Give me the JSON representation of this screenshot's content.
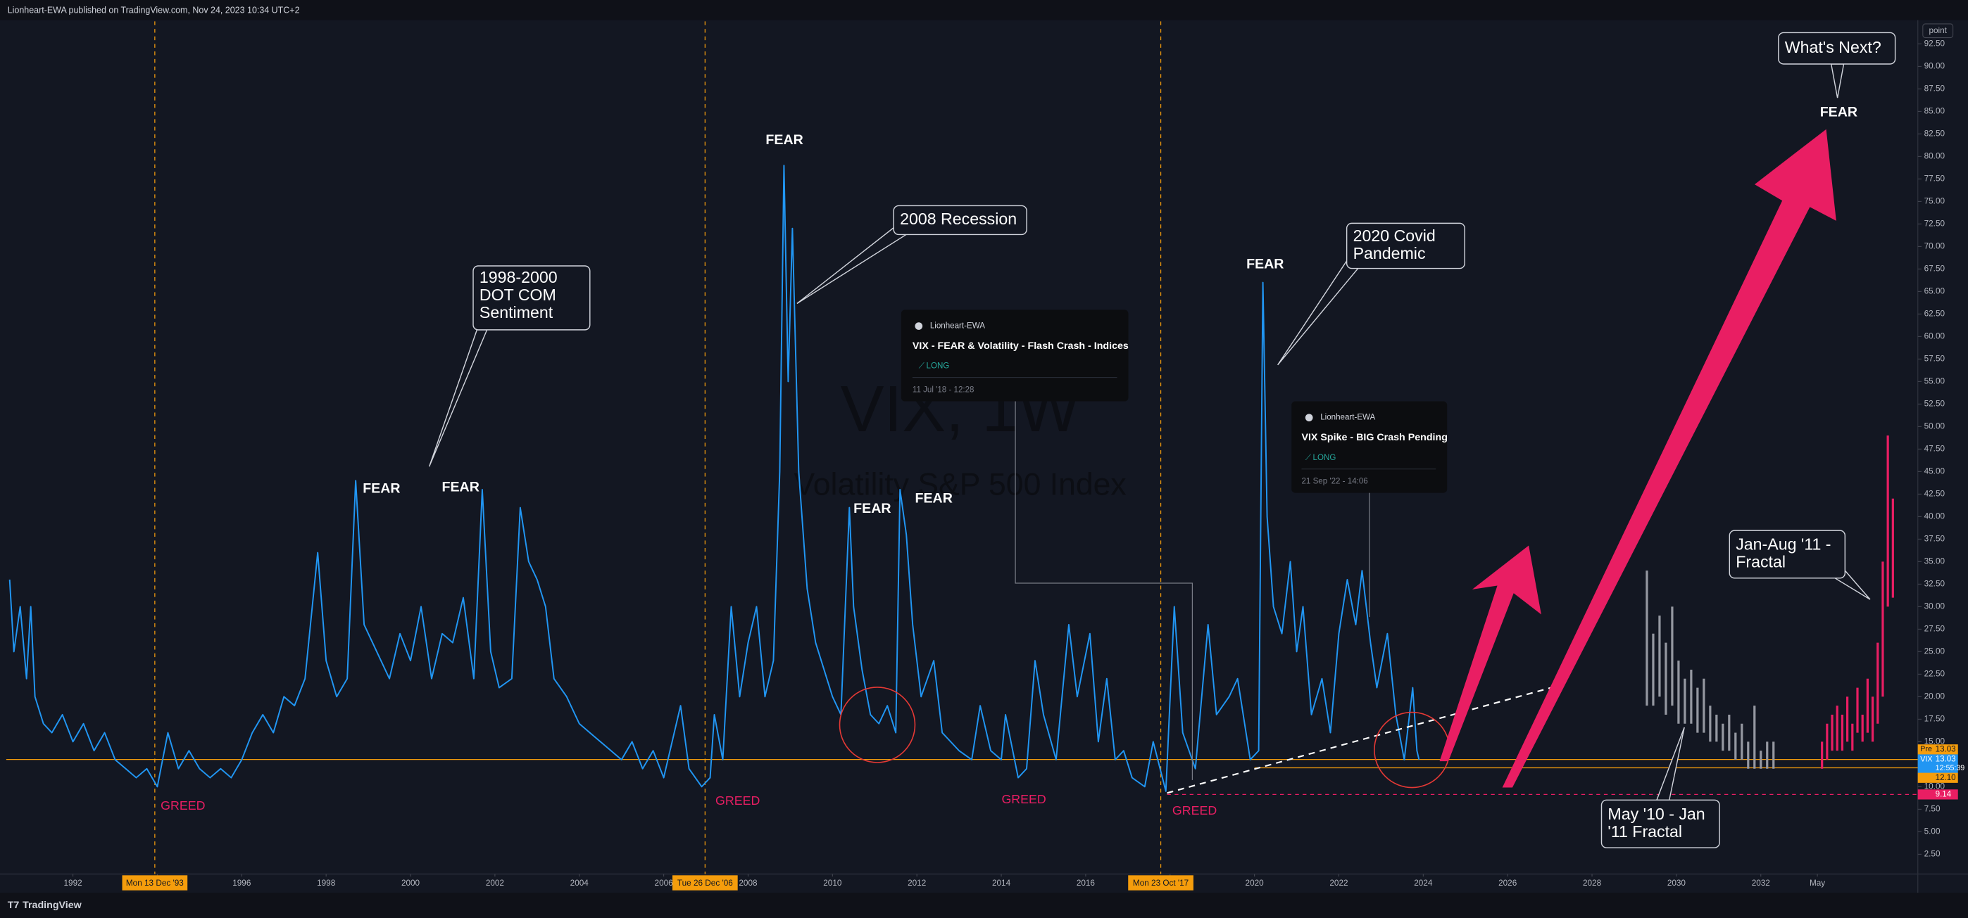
{
  "chart_data": {
    "type": "line",
    "title": "VIX, 1W",
    "subtitle": "Volatility S&P 500 Index",
    "header": "Lionheart-EWA published on TradingView.com, Nov 24, 2023 10:34 UTC+2",
    "brand": "TradingView",
    "axis_unit": "point",
    "xlim": [
      1990.42,
      2035.72
    ],
    "ylim": [
      0.3,
      95
    ],
    "xticks": [
      1992,
      1994,
      1996,
      1998,
      2000,
      2002,
      2004,
      2006,
      2008,
      2010,
      2012,
      2014,
      2016,
      2018,
      2020,
      2022,
      2024,
      2026,
      2028,
      2030,
      2032,
      {
        "value": 2033.34,
        "label": "May"
      }
    ],
    "yticks": [
      {
        "value": 2.5,
        "label": "2.50"
      },
      {
        "value": 5,
        "label": "5.00"
      },
      {
        "value": 7.5,
        "label": "7.50"
      },
      {
        "value": 10,
        "label": "10.00"
      },
      {
        "value": 12.5,
        "label": "12.50"
      },
      {
        "value": 15,
        "label": "15.00"
      },
      {
        "value": 17.5,
        "label": "17.50"
      },
      {
        "value": 20,
        "label": "20.00"
      },
      {
        "value": 22.5,
        "label": "22.50"
      },
      {
        "value": 25,
        "label": "25.00"
      },
      {
        "value": 27.5,
        "label": "27.50"
      },
      {
        "value": 30,
        "label": "30.00"
      },
      {
        "value": 32.5,
        "label": "32.50"
      },
      {
        "value": 35,
        "label": "35.00"
      },
      {
        "value": 37.5,
        "label": "37.50"
      },
      {
        "value": 40,
        "label": "40.00"
      },
      {
        "value": 42.5,
        "label": "42.50"
      },
      {
        "value": 45,
        "label": "45.00"
      },
      {
        "value": 47.5,
        "label": "47.50"
      },
      {
        "value": 50,
        "label": "50.00"
      },
      {
        "value": 52.5,
        "label": "52.50"
      },
      {
        "value": 55,
        "label": "55.00"
      },
      {
        "value": 57.5,
        "label": "57.50"
      },
      {
        "value": 60,
        "label": "60.00"
      },
      {
        "value": 62.5,
        "label": "62.50"
      },
      {
        "value": 65,
        "label": "65.00"
      },
      {
        "value": 67.5,
        "label": "67.50"
      },
      {
        "value": 70,
        "label": "70.00"
      },
      {
        "value": 72.5,
        "label": "72.50"
      },
      {
        "value": 75,
        "label": "75.00"
      },
      {
        "value": 77.5,
        "label": "77.50"
      },
      {
        "value": 80,
        "label": "80.00"
      },
      {
        "value": 82.5,
        "label": "82.50"
      },
      {
        "value": 85,
        "label": "85.00"
      },
      {
        "value": 87.5,
        "label": "87.50"
      },
      {
        "value": 90,
        "label": "90.00"
      },
      {
        "value": 92.5,
        "label": "92.50"
      }
    ],
    "series": [
      {
        "name": "VIX",
        "color": "#2196f3",
        "style": "line",
        "x": [
          1990.5,
          1990.6,
          1990.75,
          1990.9,
          1991.0,
          1991.1,
          1991.3,
          1991.5,
          1991.75,
          1992.0,
          1992.25,
          1992.5,
          1992.75,
          1993.0,
          1993.25,
          1993.5,
          1993.75,
          1994.0,
          1994.25,
          1994.5,
          1994.75,
          1995.0,
          1995.25,
          1995.5,
          1995.75,
          1996.0,
          1996.25,
          1996.5,
          1996.75,
          1997.0,
          1997.25,
          1997.5,
          1997.8,
          1998.0,
          1998.25,
          1998.5,
          1998.7,
          1998.9,
          1999.1,
          1999.3,
          1999.5,
          1999.75,
          2000.0,
          2000.25,
          2000.5,
          2000.75,
          2001.0,
          2001.25,
          2001.5,
          2001.7,
          2001.9,
          2002.1,
          2002.4,
          2002.6,
          2002.8,
          2003.0,
          2003.2,
          2003.4,
          2003.7,
          2004.0,
          2004.25,
          2004.5,
          2004.75,
          2005.0,
          2005.25,
          2005.5,
          2005.75,
          2006.0,
          2006.4,
          2006.6,
          2006.9,
          2007.1,
          2007.2,
          2007.4,
          2007.6,
          2007.8,
          2008.0,
          2008.2,
          2008.4,
          2008.6,
          2008.75,
          2008.85,
          2008.95,
          2009.05,
          2009.2,
          2009.4,
          2009.6,
          2009.8,
          2010.0,
          2010.2,
          2010.4,
          2010.5,
          2010.7,
          2010.9,
          2011.1,
          2011.3,
          2011.5,
          2011.6,
          2011.75,
          2011.9,
          2012.1,
          2012.4,
          2012.6,
          2012.8,
          2013.0,
          2013.3,
          2013.5,
          2013.75,
          2014.0,
          2014.1,
          2014.4,
          2014.6,
          2014.8,
          2015.0,
          2015.3,
          2015.6,
          2015.8,
          2016.1,
          2016.3,
          2016.5,
          2016.7,
          2016.9,
          2017.1,
          2017.4,
          2017.6,
          2017.9,
          2018.1,
          2018.3,
          2018.6,
          2018.9,
          2019.1,
          2019.4,
          2019.6,
          2019.9,
          2020.1,
          2020.2,
          2020.3,
          2020.45,
          2020.65,
          2020.85,
          2021.0,
          2021.15,
          2021.35,
          2021.6,
          2021.8,
          2022.0,
          2022.2,
          2022.4,
          2022.55,
          2022.75,
          2022.9,
          2023.15,
          2023.35,
          2023.55,
          2023.75,
          2023.85,
          2023.9
        ],
        "values": [
          33,
          25,
          30,
          22,
          30,
          20,
          17,
          16,
          18,
          15,
          17,
          14,
          16,
          13,
          12,
          11,
          12,
          10,
          16,
          12,
          14,
          12,
          11,
          12,
          11,
          13,
          16,
          18,
          16,
          20,
          19,
          22,
          36,
          24,
          20,
          22,
          44,
          28,
          26,
          24,
          22,
          27,
          24,
          30,
          22,
          27,
          26,
          31,
          22,
          43,
          25,
          21,
          22,
          41,
          35,
          33,
          30,
          22,
          20,
          17,
          16,
          15,
          14,
          13,
          15,
          12,
          14,
          11,
          19,
          12,
          10,
          11,
          18,
          13,
          30,
          20,
          26,
          30,
          20,
          24,
          45,
          79,
          55,
          72,
          45,
          32,
          26,
          23,
          20,
          18,
          41,
          30,
          23,
          18,
          17,
          19,
          16,
          43,
          38,
          28,
          20,
          24,
          16,
          15,
          14,
          13,
          19,
          14,
          13,
          18,
          11,
          12,
          24,
          18,
          13,
          28,
          20,
          27,
          15,
          22,
          13,
          14,
          11,
          10,
          15,
          9.5,
          30,
          16,
          12,
          28,
          18,
          20,
          22,
          13,
          14,
          66,
          40,
          30,
          27,
          35,
          25,
          30,
          18,
          22,
          16,
          27,
          33,
          28,
          34,
          26,
          21,
          27,
          18,
          13,
          21,
          14,
          13
        ]
      },
      {
        "color": "#9598a1",
        "style": "bars",
        "x": [
          2029.3,
          2029.45,
          2029.6,
          2029.75,
          2029.9,
          2030.05,
          2030.2,
          2030.35,
          2030.5,
          2030.65,
          2030.8,
          2030.95,
          2031.1,
          2031.25,
          2031.4,
          2031.55,
          2031.7,
          2031.85,
          2032.0,
          2032.15,
          2032.3
        ],
        "values": [
          34,
          27,
          29,
          26,
          30,
          24,
          22,
          23,
          21,
          22,
          19,
          18,
          17,
          18,
          16,
          17,
          15,
          19,
          14,
          15,
          15
        ],
        "lows": [
          19,
          19,
          20,
          18,
          19,
          17,
          17,
          17,
          16,
          16,
          15,
          15,
          14,
          14,
          13,
          13,
          12,
          12,
          12,
          12,
          12
        ]
      },
      {
        "color": "#e91e63",
        "style": "bars",
        "x": [
          2033.45,
          2033.57,
          2033.69,
          2033.81,
          2033.93,
          2034.05,
          2034.17,
          2034.29,
          2034.41,
          2034.53,
          2034.65,
          2034.77,
          2034.89,
          2035.01,
          2035.13
        ],
        "values": [
          15,
          17,
          18,
          19,
          18,
          20,
          17,
          21,
          18,
          22,
          20,
          26,
          35,
          49,
          42
        ],
        "lows": [
          12,
          13,
          14,
          14,
          14,
          15,
          14,
          16,
          15,
          16,
          15,
          17,
          20,
          30,
          31
        ]
      }
    ],
    "markers": [
      {
        "x": 1993.94,
        "label": "Mon 13 Dec '93"
      },
      {
        "x": 2006.98,
        "label": "Tue 26 Dec '06"
      },
      {
        "x": 2017.78,
        "label": "Mon 23 Oct '17"
      }
    ],
    "price_lines": [
      {
        "tag": "Pre",
        "value": 13.03,
        "color": "#f59d0c"
      },
      {
        "tag": "VIX",
        "value": 13.03,
        "time": "12:55:39",
        "color": "#2196f3"
      },
      {
        "value": 12.1,
        "label": "12.10",
        "color": "#f59d0c",
        "x_from": 2020.0
      },
      {
        "value": 9.14,
        "color": "#e91e63",
        "x_from": 2017.93
      }
    ],
    "trendline": {
      "x": [
        2017.93,
        2027.15
      ],
      "values": [
        9.3,
        21.15
      ]
    },
    "annotations": {
      "fear": [
        "FEAR",
        "FEAR",
        "FEAR",
        "FEAR",
        "FEAR",
        "FEAR",
        "FEAR"
      ],
      "greed": [
        "GREED",
        "GREED",
        "GREED",
        "GREED"
      ],
      "callouts": [
        [
          "1998-2000",
          "DOT COM",
          "Sentiment"
        ],
        [
          "2008 Recession"
        ],
        [
          "2020 Covid",
          "Pandemic"
        ],
        [
          "What's Next?"
        ],
        [
          "Jan-Aug '11 -",
          "Fractal"
        ],
        [
          "May '10 - Jan",
          "'11 Fractal"
        ]
      ]
    },
    "ideas": [
      {
        "author": "Lionheart-EWA",
        "title": "VIX - FEAR & Volatility - Flash Crash - Indices",
        "direction": "LONG",
        "date": "11 Jul '18 - 12:28"
      },
      {
        "author": "Lionheart-EWA",
        "title": "VIX Spike - BIG Crash Pending",
        "direction": "LONG",
        "date": "21 Sep '22 - 14:06"
      }
    ]
  }
}
